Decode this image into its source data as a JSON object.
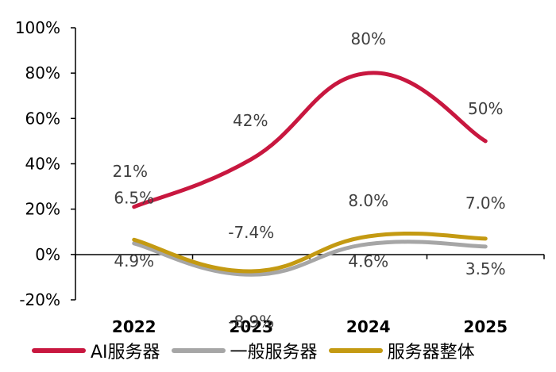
{
  "chart_data": {
    "type": "line",
    "categories": [
      "2022",
      "2023",
      "2024",
      "2025"
    ],
    "ylim": [
      -0.2,
      1.0
    ],
    "yticks": [
      -0.2,
      0,
      0.2,
      0.4,
      0.6,
      0.8,
      1.0
    ],
    "ytick_labels": [
      "-20%",
      "0%",
      "20%",
      "40%",
      "60%",
      "80%",
      "100%"
    ],
    "grid": false,
    "legend_position": "bottom",
    "series": [
      {
        "name": "AI服务器",
        "color": "#C8173F",
        "values": [
          0.21,
          0.42,
          0.8,
          0.5
        ],
        "labels": [
          "21%",
          "42%",
          "80%",
          "50%"
        ]
      },
      {
        "name": "一般服务器",
        "color": "#A6A6A6",
        "values": [
          0.049,
          -0.089,
          0.046,
          0.035
        ],
        "labels": [
          "4.9%",
          "-8.9%",
          "4.6%",
          "3.5%"
        ]
      },
      {
        "name": "服务器整体",
        "color": "#C49A12",
        "values": [
          0.065,
          -0.074,
          0.08,
          0.07
        ],
        "labels": [
          "6.5%",
          "-7.4%",
          "8.0%",
          "7.0%"
        ]
      }
    ]
  }
}
